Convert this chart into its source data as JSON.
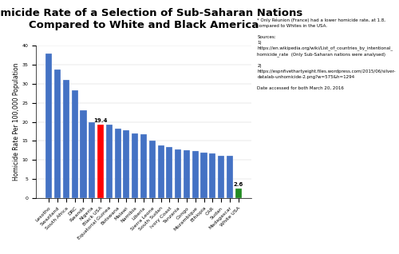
{
  "categories": [
    "Lesotho",
    "Swaziland",
    "South Africa",
    "DRC",
    "Rwanda",
    "Nigeria",
    "Black USA",
    "Equatorial Guinea",
    "Botswana",
    "Malawi",
    "Namibia",
    "Liberia",
    "Sierra Leone",
    "South Sudan",
    "Ivory Coast",
    "Tanzania",
    "Congo",
    "Mozambique",
    "Ethiopia",
    "CAR",
    "Sudan",
    "Madagascar",
    "White USA"
  ],
  "values": [
    38.0,
    33.8,
    31.0,
    28.3,
    23.1,
    20.0,
    19.4,
    19.3,
    18.3,
    17.9,
    17.0,
    16.7,
    15.0,
    13.8,
    13.5,
    12.7,
    12.5,
    12.3,
    12.0,
    11.8,
    11.2,
    11.1,
    2.6
  ],
  "bar_colors": [
    "#4472C4",
    "#4472C4",
    "#4472C4",
    "#4472C4",
    "#4472C4",
    "#4472C4",
    "#FF0000",
    "#4472C4",
    "#4472C4",
    "#4472C4",
    "#4472C4",
    "#4472C4",
    "#4472C4",
    "#4472C4",
    "#4472C4",
    "#4472C4",
    "#4472C4",
    "#4472C4",
    "#4472C4",
    "#4472C4",
    "#4472C4",
    "#4472C4",
    "#228B22"
  ],
  "labeled_bars": {
    "Black USA": "19.4",
    "White USA": "2.6"
  },
  "title_line1": "Homicide Rate of a Selection of Sub-Saharan Nations",
  "title_line2": "Compared to White and Black America",
  "ylabel": "Homicide Rate Per 100,000 Population",
  "ylim": [
    0,
    40
  ],
  "yticks": [
    0,
    5,
    10,
    15,
    20,
    25,
    30,
    35,
    40
  ],
  "annotation_text": "* Only Réunion (France) had a lower homicide rate, at 1.8,\ncompared to Whites in the USA.\n\nSources:\n1)\nhttps://en.wikipedia.org/wiki/List_of_countries_by_intentional_\nhomicide_rate  (Only Sub-Saharan nations were analysed)\n\n2)\nhttps://espnfivethartyeight.files.wordpress.com/2015/06/silver-\ndatalab-unhomicide-2.png?w=575&h=1294\n\nDate accessed for both March 20, 2016",
  "background_color": "#FFFFFF",
  "title_fontsize": 9.5,
  "ylabel_fontsize": 5.5,
  "tick_fontsize": 4.5,
  "annotation_fontsize": 4.0,
  "bar_label_fontsize": 5.0
}
